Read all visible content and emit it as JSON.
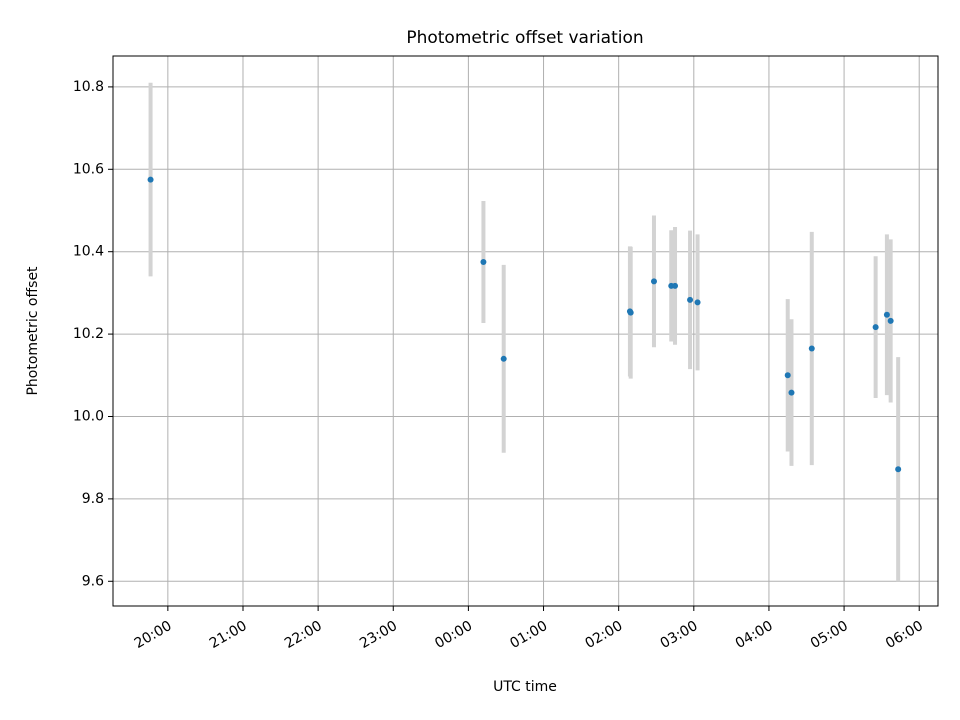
{
  "chart_data": {
    "type": "scatter",
    "title": "Photometric offset variation",
    "xlabel": "UTC time",
    "ylabel": "Photometric offset",
    "x_unit": "hours UTC (times after midnight shown as 24+h)",
    "xlim": [
      19.27,
      30.25
    ],
    "ylim": [
      9.54,
      10.875
    ],
    "grid": true,
    "x_ticks": [
      {
        "value": 20,
        "label": "20:00"
      },
      {
        "value": 21,
        "label": "21:00"
      },
      {
        "value": 22,
        "label": "22:00"
      },
      {
        "value": 23,
        "label": "23:00"
      },
      {
        "value": 24,
        "label": "00:00"
      },
      {
        "value": 25,
        "label": "01:00"
      },
      {
        "value": 26,
        "label": "02:00"
      },
      {
        "value": 27,
        "label": "03:00"
      },
      {
        "value": 28,
        "label": "04:00"
      },
      {
        "value": 29,
        "label": "05:00"
      },
      {
        "value": 30,
        "label": "06:00"
      }
    ],
    "y_ticks": [
      {
        "value": 9.6,
        "label": "9.6"
      },
      {
        "value": 9.8,
        "label": "9.8"
      },
      {
        "value": 10.0,
        "label": "10.0"
      },
      {
        "value": 10.2,
        "label": "10.2"
      },
      {
        "value": 10.4,
        "label": "10.4"
      },
      {
        "value": 10.6,
        "label": "10.6"
      },
      {
        "value": 10.8,
        "label": "10.8"
      }
    ],
    "colors": {
      "marker": "#1f77b4",
      "errorbar": "#d3d3d3"
    },
    "points": [
      {
        "x": 19.77,
        "y": 10.575,
        "err": 0.235
      },
      {
        "x": 24.2,
        "y": 10.375,
        "err": 0.148
      },
      {
        "x": 24.47,
        "y": 10.14,
        "err": 0.228
      },
      {
        "x": 26.15,
        "y": 10.255,
        "err": 0.158
      },
      {
        "x": 26.16,
        "y": 10.252,
        "err": 0.16
      },
      {
        "x": 26.47,
        "y": 10.328,
        "err": 0.16
      },
      {
        "x": 26.7,
        "y": 10.317,
        "err": 0.135
      },
      {
        "x": 26.75,
        "y": 10.317,
        "err": 0.143
      },
      {
        "x": 26.95,
        "y": 10.283,
        "err": 0.168
      },
      {
        "x": 27.05,
        "y": 10.277,
        "err": 0.165
      },
      {
        "x": 28.25,
        "y": 10.1,
        "err": 0.185
      },
      {
        "x": 28.3,
        "y": 10.058,
        "err": 0.178
      },
      {
        "x": 28.57,
        "y": 10.165,
        "err": 0.283
      },
      {
        "x": 29.42,
        "y": 10.217,
        "err": 0.172
      },
      {
        "x": 29.57,
        "y": 10.247,
        "err": 0.195
      },
      {
        "x": 29.62,
        "y": 10.232,
        "err": 0.198
      },
      {
        "x": 29.72,
        "y": 9.872,
        "err": 0.272
      }
    ]
  }
}
